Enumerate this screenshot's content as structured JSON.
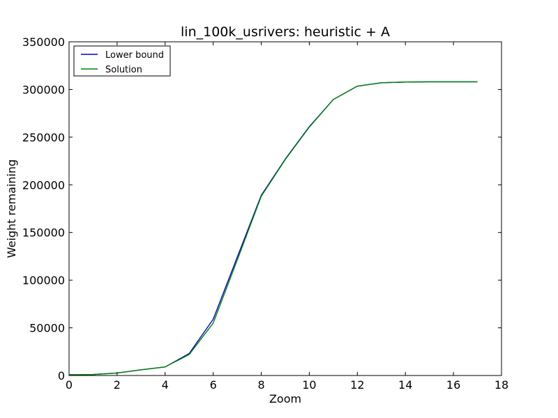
{
  "chart_data": {
    "type": "line",
    "title": "lin_100k_usrivers: heuristic + A",
    "xlabel": "Zoom",
    "ylabel": "Weight remaining",
    "xlim": [
      0,
      18
    ],
    "ylim": [
      0,
      350000
    ],
    "xticks": [
      0,
      2,
      4,
      6,
      8,
      10,
      12,
      14,
      16,
      18
    ],
    "yticks": [
      0,
      50000,
      100000,
      150000,
      200000,
      250000,
      300000,
      350000
    ],
    "xtick_labels": [
      "0",
      "2",
      "4",
      "6",
      "8",
      "10",
      "12",
      "14",
      "16",
      "18"
    ],
    "ytick_labels": [
      "0",
      "50000",
      "100000",
      "150000",
      "200000",
      "250000",
      "300000",
      "350000"
    ],
    "grid": false,
    "legend_position": "top-left",
    "x": [
      0,
      1,
      2,
      3,
      4,
      5,
      6,
      7,
      8,
      9,
      10,
      11,
      12,
      13,
      14,
      15,
      16,
      17
    ],
    "series": [
      {
        "name": "Lower bound",
        "color": "#0000cc",
        "values": [
          800,
          1000,
          2600,
          6000,
          9000,
          23000,
          59000,
          124000,
          189000,
          227000,
          261000,
          289500,
          303500,
          307000,
          307800,
          308000,
          308000,
          308000
        ]
      },
      {
        "name": "Solution",
        "color": "#008000",
        "values": [
          800,
          1000,
          2600,
          6000,
          9000,
          22000,
          55000,
          121000,
          188000,
          226500,
          260500,
          289500,
          303500,
          307000,
          307800,
          308000,
          308000,
          308000
        ]
      }
    ]
  }
}
